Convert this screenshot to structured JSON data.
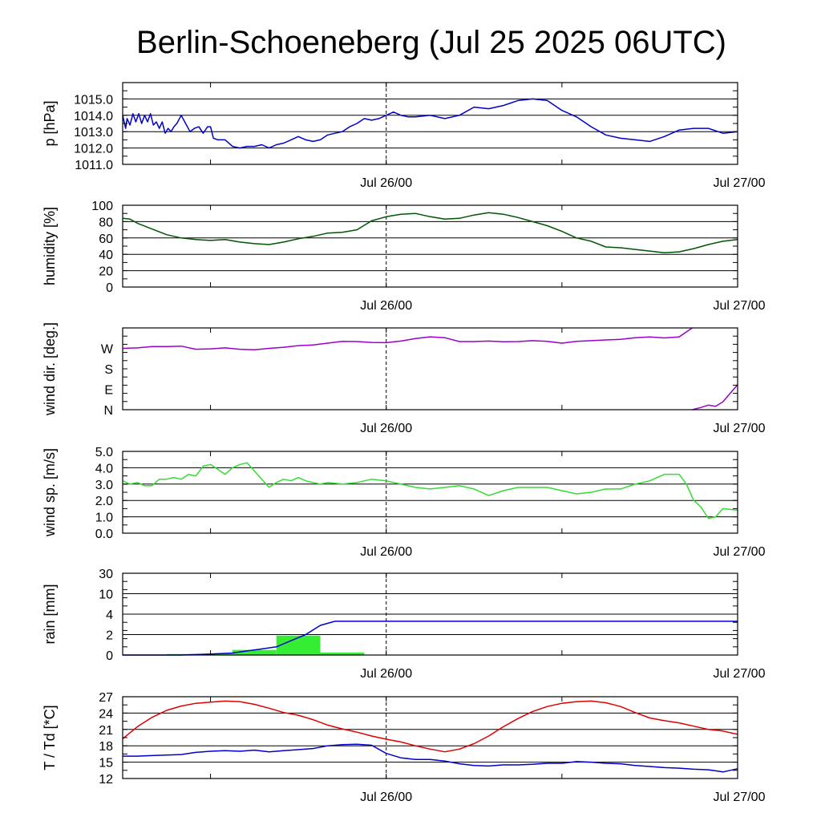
{
  "title": "Berlin-Schoeneberg (Jul 25 2025 06UTC)",
  "x_tick_labels": [
    "Jul 26/00",
    "Jul 27/00"
  ],
  "colors": {
    "pressure": "#0000cc",
    "humidity": "#005500",
    "wind_dir": "#9900cc",
    "wind_speed": "#33dd33",
    "rain_bar": "#33ee33",
    "rain_cum": "#0000cc",
    "temperature": "#dd0000",
    "dewpoint": "#0000cc"
  },
  "chart_data": [
    {
      "type": "line",
      "id": "pressure",
      "ylabel": "p [hPa]",
      "x_unit": "hours since Jul 25 06UTC",
      "xlim": [
        0,
        42
      ],
      "ylim": [
        1011,
        1016
      ],
      "yticks": [
        1011,
        1012,
        1013,
        1014,
        1015
      ],
      "ytick_labels": [
        "1011.0",
        "1012.0",
        "1013.0",
        "1014.0",
        "1015.0"
      ],
      "grid": true,
      "series": [
        {
          "key": "pressure",
          "x": [
            0,
            0.2,
            0.3,
            0.5,
            0.7,
            0.9,
            1.1,
            1.3,
            1.5,
            1.7,
            1.9,
            2.1,
            2.3,
            2.5,
            2.7,
            2.9,
            3.1,
            3.3,
            3.5,
            3.7,
            4,
            4.3,
            4.6,
            4.9,
            5.2,
            5.5,
            5.8,
            6,
            6.2,
            6.5,
            7,
            7.5,
            8,
            8.5,
            9,
            9.5,
            10,
            10.5,
            11,
            11.5,
            12,
            12.5,
            13,
            13.5,
            14,
            14.5,
            15,
            15.5,
            16,
            16.5,
            17,
            17.5,
            18,
            18.5,
            19,
            19.5,
            20,
            21,
            22,
            23,
            24,
            25,
            26,
            27,
            28,
            29,
            30,
            31,
            32,
            33,
            34,
            35,
            36,
            37,
            38,
            39,
            40,
            41,
            42
          ],
          "values": [
            1014,
            1013.2,
            1013.8,
            1013.4,
            1014.1,
            1013.6,
            1014.1,
            1013.5,
            1014,
            1013.6,
            1014.1,
            1013.4,
            1013.6,
            1013.2,
            1013.6,
            1012.9,
            1013.2,
            1013.0,
            1013.3,
            1013.5,
            1014,
            1013.5,
            1013.0,
            1013.2,
            1013.3,
            1012.9,
            1013.3,
            1013.3,
            1012.6,
            1012.5,
            1012.5,
            1012.1,
            1012.0,
            1012.1,
            1012.1,
            1012.2,
            1012.0,
            1012.2,
            1012.3,
            1012.5,
            1012.7,
            1012.5,
            1012.4,
            1012.5,
            1012.8,
            1012.9,
            1013.0,
            1013.3,
            1013.5,
            1013.8,
            1013.7,
            1013.8,
            1014.0,
            1014.2,
            1014.0,
            1013.9,
            1013.9,
            1014.0,
            1013.8,
            1014.0,
            1014.5,
            1014.4,
            1014.6,
            1014.9,
            1015.0,
            1014.9,
            1014.3,
            1013.9,
            1013.3,
            1012.8,
            1012.6,
            1012.5,
            1012.4,
            1012.7,
            1013.1,
            1013.2,
            1013.2,
            1012.9,
            1013.0
          ]
        }
      ]
    },
    {
      "type": "line",
      "id": "humidity",
      "ylabel": "humidity [%]",
      "xlim": [
        0,
        42
      ],
      "ylim": [
        0,
        100
      ],
      "yticks": [
        0,
        20,
        40,
        60,
        80,
        100
      ],
      "ytick_labels": [
        "0",
        "20",
        "40",
        "60",
        "80",
        "100"
      ],
      "grid": true,
      "series": [
        {
          "key": "humidity",
          "x": [
            0,
            0.5,
            1,
            2,
            3,
            4,
            5,
            6,
            7,
            8,
            9,
            10,
            11,
            12,
            13,
            14,
            15,
            16,
            17,
            18,
            19,
            20,
            21,
            22,
            23,
            24,
            25,
            26,
            27,
            28,
            29,
            30,
            31,
            32,
            33,
            34,
            35,
            36,
            37,
            38,
            39,
            40,
            41,
            42
          ],
          "values": [
            84,
            83,
            78,
            71,
            64,
            60,
            58,
            57,
            58,
            55,
            53,
            52,
            55,
            59,
            62,
            66,
            67,
            70,
            81,
            86,
            89,
            90,
            86,
            83,
            84,
            88,
            91,
            89,
            85,
            80,
            75,
            68,
            60,
            56,
            49,
            48,
            46,
            44,
            42,
            43,
            47,
            52,
            56,
            58
          ]
        }
      ]
    },
    {
      "type": "line",
      "id": "wind_dir",
      "ylabel": "wind dir. [deg.]",
      "xlim": [
        0,
        42
      ],
      "ylim": [
        0,
        360
      ],
      "yticks": [
        0,
        90,
        180,
        270
      ],
      "ytick_labels": [
        "N",
        "E",
        "S",
        "W"
      ],
      "grid": false,
      "series": [
        {
          "key": "wind_dir",
          "x": [
            0,
            1,
            2,
            3,
            4,
            5,
            6,
            7,
            8,
            9,
            10,
            11,
            12,
            13,
            14,
            15,
            16,
            17,
            18,
            19,
            20,
            21,
            22,
            23,
            24,
            25,
            26,
            27,
            28,
            29,
            30,
            31,
            32,
            33,
            34,
            35,
            36,
            37,
            38,
            38.9
          ],
          "values": [
            270,
            272,
            278,
            278,
            280,
            266,
            268,
            272,
            266,
            264,
            270,
            275,
            282,
            285,
            293,
            301,
            300,
            296,
            295,
            302,
            313,
            321,
            317,
            300,
            300,
            302,
            299,
            300,
            304,
            301,
            293,
            301,
            304,
            307,
            310,
            317,
            320,
            316,
            320,
            360
          ]
        },
        {
          "key": "wind_dir",
          "x": [
            38.9,
            39.5,
            40,
            40.5,
            41,
            42
          ],
          "values": [
            0,
            10,
            20,
            15,
            35,
            110
          ]
        }
      ]
    },
    {
      "type": "line",
      "id": "wind_speed",
      "ylabel": "wind sp. [m/s]",
      "xlim": [
        0,
        42
      ],
      "ylim": [
        0,
        5
      ],
      "yticks": [
        0,
        1,
        2,
        3,
        4,
        5
      ],
      "ytick_labels": [
        "0.0",
        "1.0",
        "2.0",
        "3.0",
        "4.0",
        "5.0"
      ],
      "grid": true,
      "series": [
        {
          "key": "wind_speed",
          "x": [
            0,
            0.5,
            1,
            1.5,
            2,
            2.5,
            3,
            3.5,
            4,
            4.5,
            5,
            5.5,
            6,
            6.5,
            7,
            7.5,
            8,
            8.5,
            9,
            9.5,
            10,
            10.5,
            11,
            11.5,
            12,
            12.5,
            13,
            13.5,
            14,
            15,
            16,
            17,
            18,
            19,
            20,
            21,
            22,
            23,
            24,
            25,
            26,
            27,
            28,
            29,
            30,
            31,
            32,
            33,
            34,
            35,
            36,
            37,
            38,
            38.5,
            39,
            39.5,
            40,
            40.5,
            41,
            42
          ],
          "values": [
            3.2,
            3.0,
            3.1,
            2.9,
            2.9,
            3.3,
            3.3,
            3.4,
            3.3,
            3.6,
            3.5,
            4.1,
            4.2,
            3.9,
            3.6,
            4.0,
            4.2,
            4.3,
            3.8,
            3.3,
            2.8,
            3.1,
            3.3,
            3.2,
            3.4,
            3.2,
            3.1,
            3.0,
            3.1,
            3.0,
            3.1,
            3.3,
            3.2,
            3.0,
            2.8,
            2.7,
            2.8,
            2.9,
            2.7,
            2.3,
            2.6,
            2.8,
            2.8,
            2.8,
            2.6,
            2.4,
            2.5,
            2.7,
            2.7,
            3.0,
            3.2,
            3.6,
            3.6,
            3.0,
            2.0,
            1.6,
            0.9,
            1.0,
            1.5,
            1.4
          ]
        }
      ]
    },
    {
      "type": "bar+line",
      "id": "rain",
      "ylabel": "rain [mm]",
      "xlim": [
        0,
        42
      ],
      "ylim": [
        0,
        30
      ],
      "y_scale": "custom (0, 2, 4, 10, 30 evenly spaced)",
      "yticks": [
        0,
        2,
        4,
        10,
        30
      ],
      "ytick_labels": [
        "0",
        "2",
        "4",
        "10",
        "30"
      ],
      "grid": true,
      "bars": [
        {
          "x0": 3,
          "x1": 6,
          "value": 0.1
        },
        {
          "x0": 6,
          "x1": 7.5,
          "value": 0.15
        },
        {
          "x0": 7.5,
          "x1": 10.5,
          "value": 0.5
        },
        {
          "x0": 10.5,
          "x1": 13.5,
          "value": 1.9
        },
        {
          "x0": 13.5,
          "x1": 16.5,
          "value": 0.25
        }
      ],
      "series": [
        {
          "key": "rain_cum",
          "x": [
            0,
            4,
            6,
            7.5,
            8.5,
            9.5,
            10.5,
            11.5,
            12.5,
            13.5,
            14.5,
            42
          ],
          "values": [
            0,
            0,
            0.1,
            0.2,
            0.4,
            0.6,
            0.8,
            1.4,
            2.0,
            2.9,
            3.3,
            3.3
          ]
        }
      ]
    },
    {
      "type": "line",
      "id": "temperature",
      "ylabel": "T / Td [*C]",
      "xlim": [
        0,
        42
      ],
      "ylim": [
        12,
        27
      ],
      "yticks": [
        12,
        15,
        18,
        21,
        24,
        27
      ],
      "ytick_labels": [
        "12",
        "15",
        "18",
        "21",
        "24",
        "27"
      ],
      "grid": true,
      "series": [
        {
          "key": "temperature",
          "x": [
            0,
            1,
            2,
            3,
            4,
            5,
            6,
            7,
            8,
            9,
            10,
            11,
            12,
            13,
            14,
            15,
            16,
            17,
            18,
            19,
            20,
            21,
            22,
            23,
            24,
            25,
            26,
            27,
            28,
            29,
            30,
            31,
            32,
            33,
            34,
            35,
            36,
            37,
            38,
            39,
            40,
            41,
            42
          ],
          "values": [
            19.3,
            21.5,
            23.2,
            24.5,
            25.3,
            25.8,
            26.0,
            26.2,
            26.1,
            25.6,
            24.9,
            24.1,
            23.6,
            22.8,
            21.8,
            21.1,
            20.5,
            19.8,
            19.2,
            18.7,
            18.0,
            17.4,
            16.9,
            17.4,
            18.4,
            19.8,
            21.5,
            23.0,
            24.3,
            25.2,
            25.8,
            26.1,
            26.2,
            25.9,
            25.2,
            24.1,
            23.1,
            22.6,
            22.2,
            21.6,
            21.0,
            20.7,
            20.1
          ]
        },
        {
          "key": "dewpoint",
          "x": [
            0,
            1,
            2,
            3,
            4,
            5,
            6,
            7,
            8,
            9,
            10,
            11,
            12,
            13,
            14,
            15,
            16,
            17,
            18,
            19,
            20,
            21,
            22,
            23,
            24,
            25,
            26,
            27,
            28,
            29,
            30,
            31,
            32,
            33,
            34,
            35,
            36,
            37,
            38,
            39,
            40,
            41,
            42
          ],
          "values": [
            16.1,
            16.1,
            16.2,
            16.3,
            16.4,
            16.8,
            17.0,
            17.1,
            17.0,
            17.2,
            16.9,
            17.1,
            17.3,
            17.5,
            18.0,
            18.2,
            18.3,
            18.1,
            16.6,
            15.8,
            15.5,
            15.5,
            15.2,
            14.7,
            14.4,
            14.3,
            14.5,
            14.5,
            14.6,
            14.8,
            14.8,
            15.1,
            15.0,
            14.8,
            14.7,
            14.4,
            14.2,
            14.0,
            13.9,
            13.7,
            13.6,
            13.2,
            13.8
          ]
        }
      ]
    }
  ]
}
